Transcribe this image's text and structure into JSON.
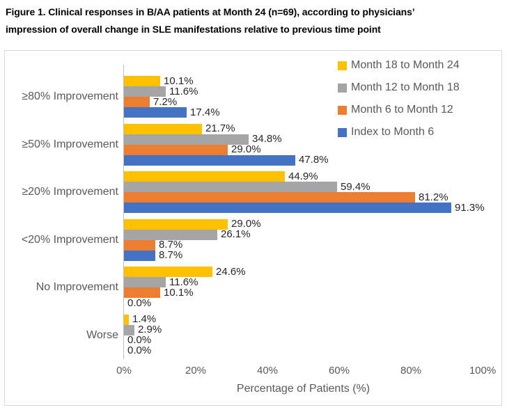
{
  "title": {
    "line1": "Figure 1. Clinical responses in B/AA patients at Month 24 (n=69), according to physicians’",
    "line2": "impression of overall change in SLE manifestations relative to previous time point"
  },
  "chart_data": {
    "type": "bar",
    "orientation": "horizontal",
    "title": "Figure 1. Clinical responses in B/AA patients at Month 24 (n=69), according to physicians’ impression of overall change in SLE manifestations relative to previous time point",
    "categories": [
      "≥80% Improvement",
      "≥50% Improvement",
      "≥20% Improvement",
      "<20% Improvement",
      "No Improvement",
      "Worse"
    ],
    "series": [
      {
        "name": "Month 18 to Month 24",
        "color": "#FFC000",
        "values": [
          10.1,
          21.7,
          44.9,
          29.0,
          24.6,
          1.4
        ]
      },
      {
        "name": "Month 12 to Month 18",
        "color": "#A5A5A5",
        "values": [
          11.6,
          34.8,
          59.4,
          26.1,
          11.6,
          2.9
        ]
      },
      {
        "name": "Month 6 to Month 12",
        "color": "#ED7D31",
        "values": [
          7.2,
          29.0,
          81.2,
          8.7,
          10.1,
          0.0
        ]
      },
      {
        "name": "Index to Month 6",
        "color": "#4472C4",
        "values": [
          17.4,
          47.8,
          91.3,
          8.7,
          0.0,
          0.0
        ]
      }
    ],
    "data_label_format": "0.0%",
    "xlabel": "Percentage of Patients (%)",
    "x_ticks": [
      "0%",
      "20%",
      "40%",
      "60%",
      "80%",
      "100%"
    ],
    "xlim": [
      0,
      100
    ],
    "grid": false,
    "legend_position": "top-right",
    "palette": {
      "data_label_text": "#262626",
      "axis_text": "#595959",
      "chart_border": "#D9D9D9",
      "axis_line": "#BFBFBF",
      "title_text": "#000000"
    }
  }
}
